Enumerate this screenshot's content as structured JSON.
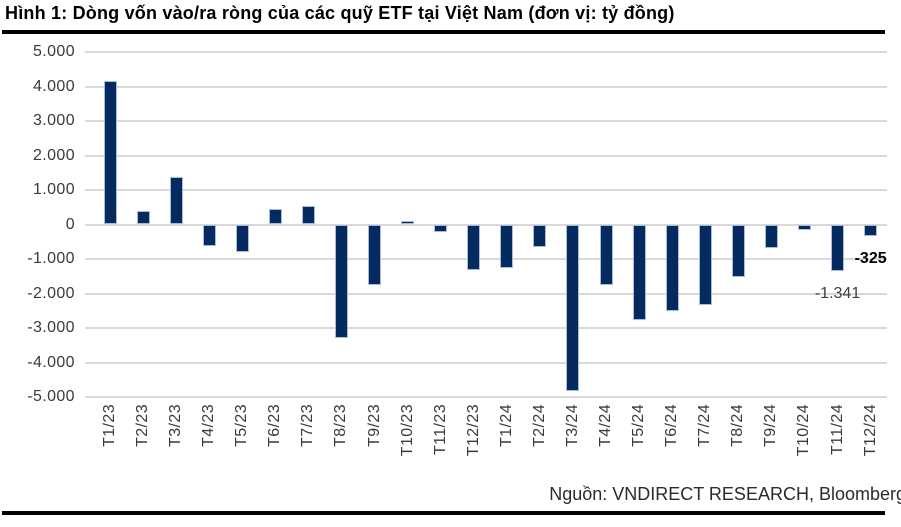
{
  "figure": {
    "source": "Nguồn: VNDIRECT RESEARCH, Bloomberg"
  },
  "colors": {
    "bar_fill": "#042a60",
    "bar_border": "#a9bcd9",
    "gridline": "#d9d9d9",
    "divider": "#000000",
    "axis_text": "#3a3a3a",
    "annotation_bold": "#000000",
    "annotation_muted": "#404040"
  },
  "chart_data": {
    "type": "bar",
    "title": "Hình 1: Dòng vốn vào/ra ròng của các quỹ ETF tại Việt Nam (đơn vị: tỷ đồng)",
    "unit": "tỷ đồng",
    "categories": [
      "T1/23",
      "T2/23",
      "T3/23",
      "T4/23",
      "T5/23",
      "T6/23",
      "T7/23",
      "T8/23",
      "T9/23",
      "T10/23",
      "T11/23",
      "T12/23",
      "T1/24",
      "T2/24",
      "T3/24",
      "T4/24",
      "T5/24",
      "T6/24",
      "T7/24",
      "T8/24",
      "T9/24",
      "T10/24",
      "T11/24",
      "T12/24"
    ],
    "values": [
      4150,
      380,
      1390,
      -630,
      -790,
      450,
      530,
      -3280,
      -1760,
      100,
      -220,
      -1320,
      -1250,
      -640,
      -4840,
      -1750,
      -2780,
      -2500,
      -2340,
      -1520,
      -680,
      -170,
      -1341,
      -325
    ],
    "ylim": [
      -5000,
      5000
    ],
    "grid": true,
    "yticks": [
      {
        "value": 5000,
        "label": "5.000"
      },
      {
        "value": 4000,
        "label": "4.000"
      },
      {
        "value": 3000,
        "label": "3.000"
      },
      {
        "value": 2000,
        "label": "2.000"
      },
      {
        "value": 1000,
        "label": "1.000"
      },
      {
        "value": 0,
        "label": "0"
      },
      {
        "value": -1000,
        "label": "-1.000"
      },
      {
        "value": -2000,
        "label": "-2.000"
      },
      {
        "value": -3000,
        "label": "-3.000"
      },
      {
        "value": -4000,
        "label": "-4.000"
      },
      {
        "value": -5000,
        "label": "-5.000"
      }
    ],
    "annotations": [
      {
        "category": "T11/24",
        "text": "-1.341",
        "bold": false
      },
      {
        "category": "T12/24",
        "text": "-325",
        "bold": true
      }
    ]
  }
}
